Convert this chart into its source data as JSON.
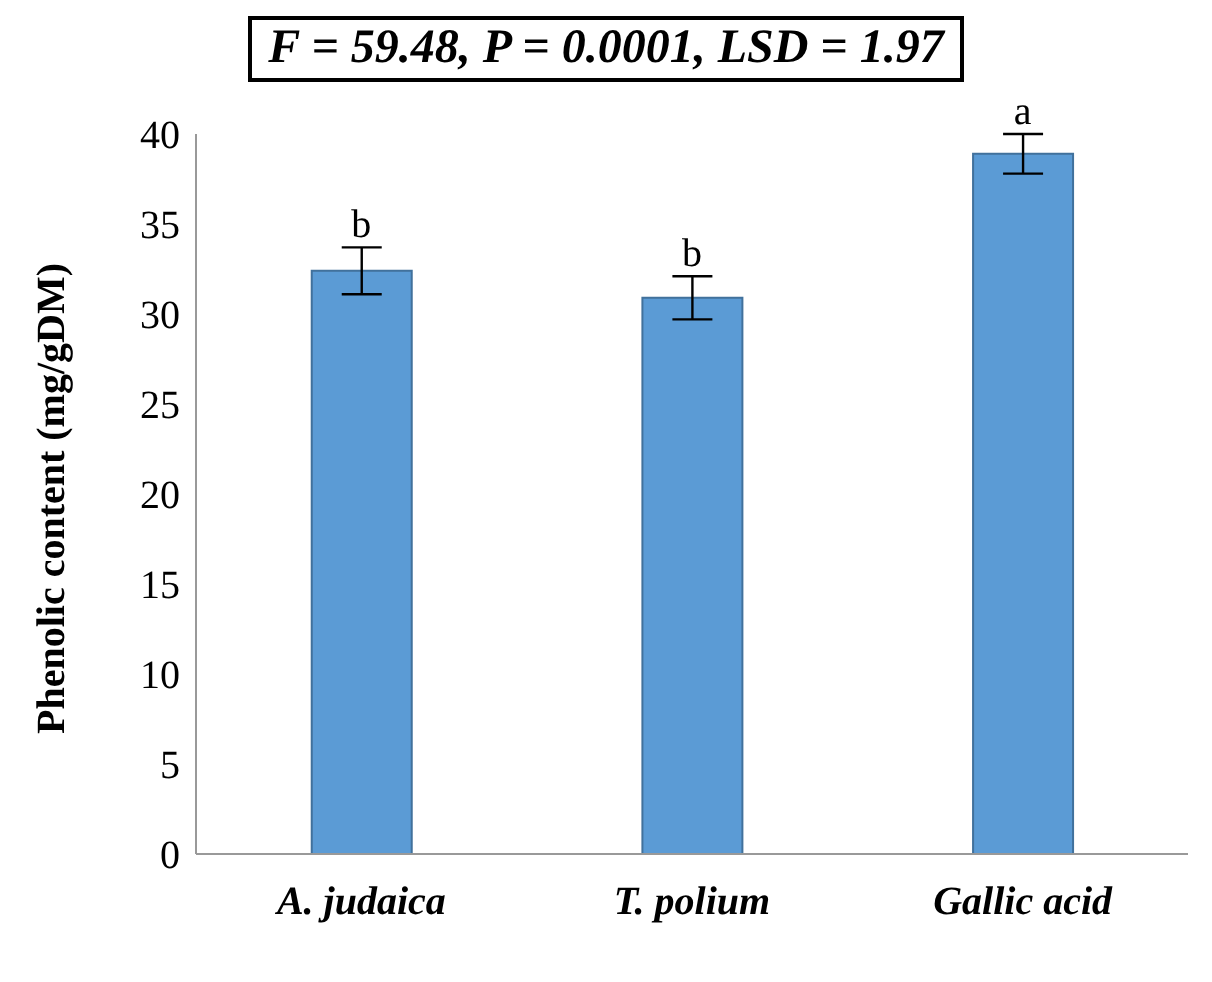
{
  "chart_data": {
    "type": "bar",
    "title": "F = 59.48, P = 0.0001, LSD = 1.97",
    "ylabel": "Phenolic content (mg/gDM)",
    "categories": [
      "A. judaica",
      "T. polium",
      "Gallic acid"
    ],
    "values": [
      32.4,
      30.9,
      38.9
    ],
    "errors": [
      1.3,
      1.2,
      1.1
    ],
    "color": "#5b9bd5",
    "ylim": [
      0,
      40
    ],
    "yticks": [
      0,
      5,
      10,
      15,
      20,
      25,
      30,
      35,
      40
    ],
    "grid": false,
    "legend": false,
    "annotations": [
      {
        "text": "b",
        "x": "A. judaica",
        "y": 33.7
      },
      {
        "text": "b",
        "x": "T. polium",
        "y": 32.1
      },
      {
        "text": "a",
        "x": "Gallic acid",
        "y": 40
      }
    ]
  }
}
